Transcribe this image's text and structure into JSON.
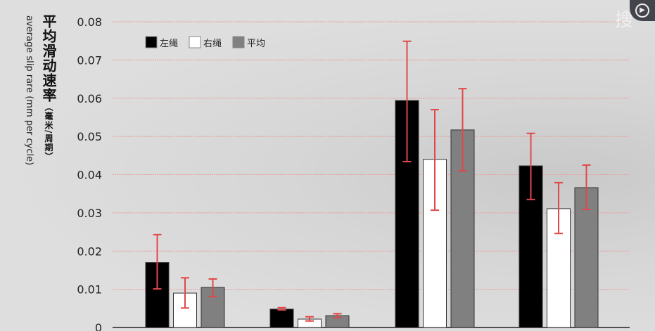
{
  "chart_data": {
    "type": "bar",
    "ylabel_cn": "平均滑动速率",
    "ylabel_unit": "（毫米/周期）",
    "ylabel_en": "average slip rare (mm per cycle)",
    "ylim": [
      0,
      0.08
    ],
    "yticks": [
      "0",
      "0.01",
      "0.02",
      "0.03",
      "0.04",
      "0.05",
      "0.06",
      "0.07",
      "0.08"
    ],
    "grid": true,
    "legend_position": "top-left",
    "categories": [
      "",
      "",
      "",
      ""
    ],
    "series": [
      {
        "name": "左绳",
        "color": "#000000",
        "values": [
          0.017,
          0.0048,
          0.0594,
          0.0423
        ],
        "err_high": [
          0.0243,
          0.0052,
          0.0749,
          0.0508
        ],
        "err_low": [
          0.0101,
          0.0046,
          0.0434,
          0.0335
        ]
      },
      {
        "name": "右绳",
        "color": "#ffffff",
        "values": [
          0.009,
          0.0022,
          0.044,
          0.0311
        ],
        "err_high": [
          0.013,
          0.0028,
          0.057,
          0.0379
        ],
        "err_low": [
          0.0051,
          0.0017,
          0.0307,
          0.0246
        ]
      },
      {
        "name": "平均",
        "color": "#808080",
        "values": [
          0.0105,
          0.0031,
          0.0517,
          0.0366
        ],
        "err_high": [
          0.0127,
          0.0036,
          0.0625,
          0.0425
        ],
        "err_low": [
          0.0081,
          0.0026,
          0.041,
          0.0309
        ]
      }
    ],
    "error_bar_color": "#e04848",
    "grid_color": "#e8a0a0"
  },
  "overlay": {
    "search_text": "搜"
  }
}
